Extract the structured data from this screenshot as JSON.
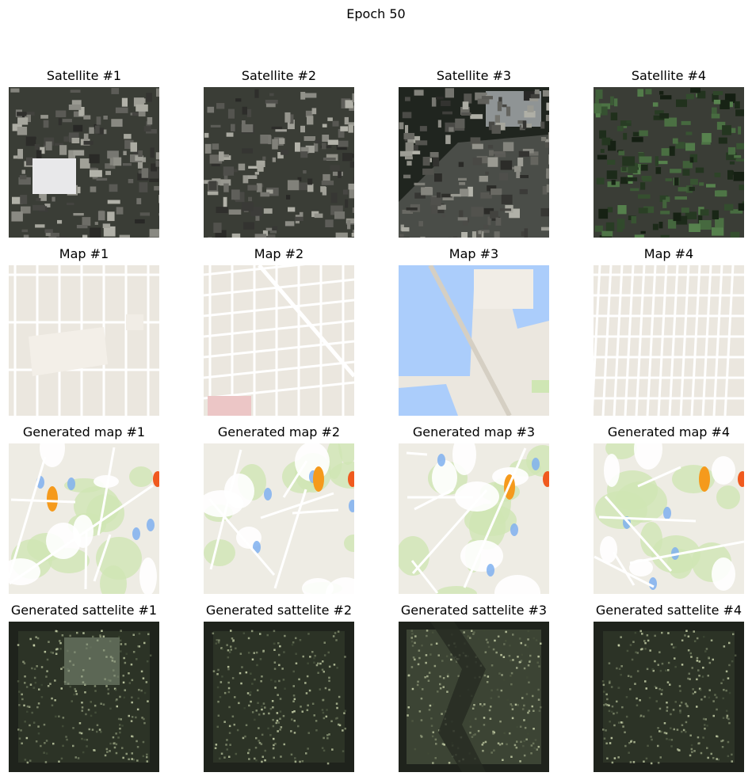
{
  "title": "Epoch 50",
  "rows": [
    {
      "kind": "satellite",
      "labels": [
        "Satellite #1",
        "Satellite #2",
        "Satellite #3",
        "Satellite #4"
      ]
    },
    {
      "kind": "map",
      "labels": [
        "Map #1",
        "Map #2",
        "Map #3",
        "Map #4"
      ]
    },
    {
      "kind": "generated-map",
      "labels": [
        "Generated map #1",
        "Generated map #2",
        "Generated map #3",
        "Generated map #4"
      ]
    },
    {
      "kind": "generated-satellite",
      "labels": [
        "Generated sattelite #1",
        "Generated sattelite #2",
        "Generated sattelite #3",
        "Generated sattelite #4"
      ]
    }
  ],
  "colors": {
    "map_land": "#ebe7df",
    "map_road": "#ffffff",
    "map_water": "#abcdfb",
    "map_park": "#cfe6b4",
    "satellite_dark": "#3a3d36",
    "generated_sat_dark": "#1f231c"
  }
}
